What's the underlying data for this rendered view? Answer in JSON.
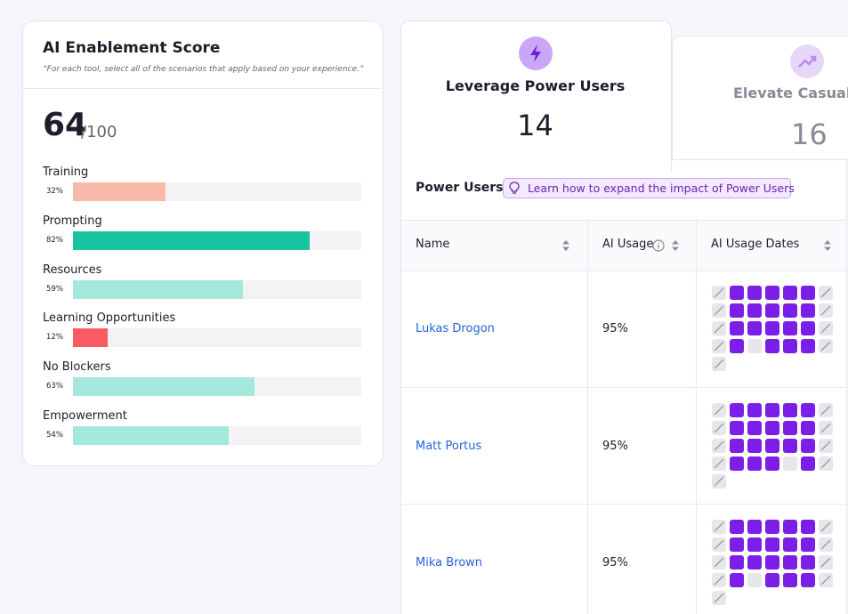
{
  "score_card": {
    "title": "AI Enablement Score",
    "subtitle": "“For each tool, select all of the scenarios that apply based on your experience.”",
    "score": 64,
    "score_max": "/100",
    "bars": {
      "type": "bar",
      "categories": [
        "Training",
        "Prompting",
        "Resources",
        "Learning Opportunities",
        "No Blockers",
        "Empowerment"
      ],
      "values": [
        32,
        82,
        59,
        12,
        63,
        54
      ],
      "value_labels": [
        "32%",
        "82%",
        "59%",
        "12%",
        "63%",
        "54%"
      ],
      "colors": [
        "#f8b9a9",
        "#17c49e",
        "#a4e8dc",
        "#fa5b63",
        "#a4e8dc",
        "#a4e8dc"
      ],
      "xlim": [
        0,
        100
      ]
    }
  },
  "tabs": [
    {
      "title": "Leverage Power Users",
      "count": 14
    },
    {
      "title": "Elevate Casual",
      "count": 16
    }
  ],
  "panel": {
    "title": "Power Users",
    "tip": "Learn how to expand the impact of Power Users",
    "table": {
      "columns": [
        "Name",
        "AI Usage",
        "AI Usage Dates"
      ],
      "rows": [
        {
          "name": "Lukas Drogon",
          "usage": "95%",
          "days": [
            null,
            1,
            1,
            1,
            1,
            1,
            null,
            null,
            1,
            1,
            1,
            1,
            1,
            null,
            null,
            1,
            1,
            1,
            1,
            1,
            null,
            null,
            1,
            0,
            1,
            1,
            1,
            null,
            null
          ]
        },
        {
          "name": "Matt Portus",
          "usage": "95%",
          "days": [
            null,
            1,
            1,
            1,
            1,
            1,
            null,
            null,
            1,
            1,
            1,
            1,
            1,
            null,
            null,
            1,
            1,
            1,
            1,
            1,
            null,
            null,
            1,
            1,
            1,
            0,
            1,
            null,
            null
          ]
        },
        {
          "name": "Mika Brown",
          "usage": "95%",
          "days": [
            null,
            1,
            1,
            1,
            1,
            1,
            null,
            null,
            1,
            1,
            1,
            1,
            1,
            null,
            null,
            1,
            1,
            1,
            1,
            1,
            null,
            null,
            1,
            0,
            1,
            1,
            1,
            null,
            null
          ]
        }
      ]
    }
  }
}
